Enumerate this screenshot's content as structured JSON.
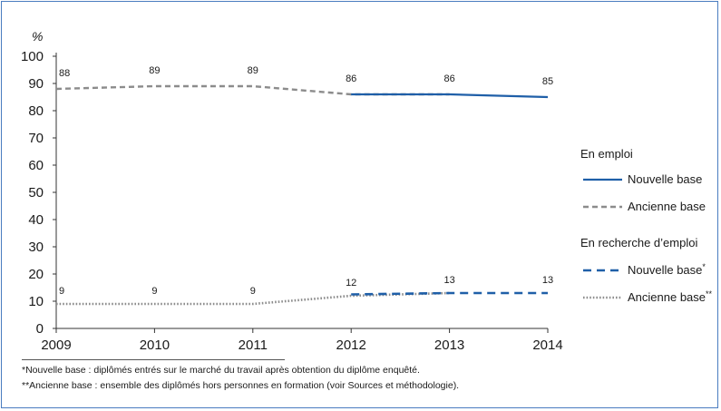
{
  "chart_data": {
    "type": "line",
    "unit_label": "%",
    "x": [
      "2009",
      "2010",
      "2011",
      "2012",
      "2013",
      "2014"
    ],
    "ylim": [
      0,
      100
    ],
    "yticks": [
      "0",
      "10",
      "20",
      "30",
      "40",
      "50",
      "60",
      "70",
      "80",
      "90",
      "100"
    ],
    "groups": [
      {
        "name": "En emploi",
        "series": [
          {
            "name": "Nouvelle base",
            "sup": "",
            "style": "solid",
            "color": "#1f5fa8",
            "x": [
              "2012",
              "2013",
              "2014"
            ],
            "values": [
              86,
              86,
              85
            ],
            "labels": [
              "",
              "",
              "85"
            ]
          },
          {
            "name": "Ancienne base",
            "sup": "",
            "style": "dashed",
            "color": "#8c8c8c",
            "x": [
              "2009",
              "2010",
              "2011",
              "2012",
              "2013"
            ],
            "values": [
              88,
              89,
              89,
              86,
              86
            ],
            "labels": [
              "88",
              "89",
              "89",
              "86",
              "86"
            ]
          }
        ]
      },
      {
        "name": "En recherche d’emploi",
        "series": [
          {
            "name": "Nouvelle base",
            "sup": "*",
            "style": "dashed-bold",
            "color": "#1f5fa8",
            "x": [
              "2012",
              "2013",
              "2014"
            ],
            "values": [
              12.5,
              13,
              13
            ],
            "labels": [
              "",
              "",
              "13"
            ]
          },
          {
            "name": "Ancienne base",
            "sup": "**",
            "style": "dotted",
            "color": "#8c8c8c",
            "x": [
              "2009",
              "2010",
              "2011",
              "2012",
              "2013"
            ],
            "values": [
              9,
              9,
              9,
              12,
              13
            ],
            "labels": [
              "9",
              "9",
              "9",
              "12",
              "13"
            ]
          }
        ]
      }
    ]
  },
  "footnotes": [
    "*Nouvelle base : diplômés entrés sur le marché du travail après obtention du diplôme enquêté.",
    "**Ancienne base : ensemble des diplômés hors personnes en formation (voir Sources et méthodologie)."
  ]
}
